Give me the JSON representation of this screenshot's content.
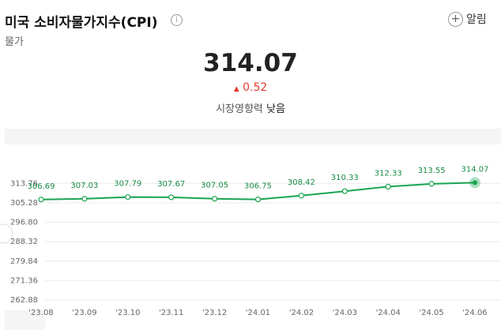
{
  "header": {
    "title": "미국 소비자물가지수(CPI)",
    "alarm": "알림",
    "category": "물가"
  },
  "summary": {
    "value": "314.07",
    "change": "0.52",
    "impact_label": "시장영향력",
    "impact": "낮음"
  },
  "chart_data": {
    "type": "line",
    "categories": [
      "'23.08",
      "'23.09",
      "'23.10",
      "'23.11",
      "'23.12",
      "'24.01",
      "'24.02",
      "'24.03",
      "'24.04",
      "'24.05",
      "'24.06"
    ],
    "series": [
      {
        "name": "CPI",
        "color": "#1aa551",
        "values": [
          306.69,
          307.03,
          307.79,
          307.67,
          307.05,
          306.75,
          308.42,
          310.33,
          312.33,
          313.55,
          314.07
        ]
      }
    ],
    "ylim": [
      262.88,
      330.72
    ],
    "yticks": [
      262.88,
      271.36,
      279.84,
      288.32,
      {
        "value": 296.8,
        "label": "296.80"
      },
      305.28,
      313.76
    ],
    "grid": true
  }
}
